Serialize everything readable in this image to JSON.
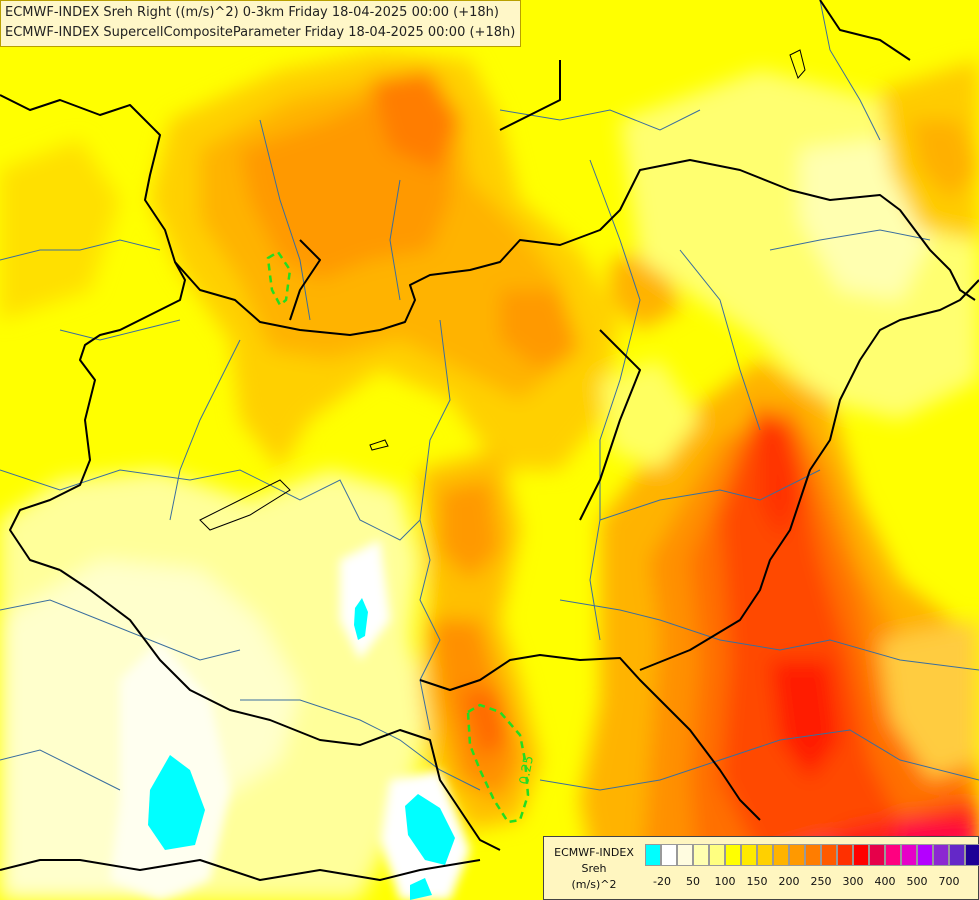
{
  "titles": {
    "line1": "ECMWF-INDEX Sreh Right ((m/s)^2) 0-3km Friday 18-04-2025 00:00 (+18h)",
    "line2": "ECMWF-INDEX SupercellCompositeParameter Friday 18-04-2025 00:00 (+18h)"
  },
  "contour_label": "0.25",
  "legend": {
    "line1": "ECMWF-INDEX",
    "line2": "Sreh",
    "line3": "(m/s)^2",
    "colors": [
      "#00ffff",
      "#ffffff",
      "#fffce0",
      "#ffffb0",
      "#ffff80",
      "#ffff00",
      "#ffea00",
      "#ffd000",
      "#ffb300",
      "#ff9900",
      "#ff7d00",
      "#ff5a00",
      "#ff3000",
      "#ff0000",
      "#e6004a",
      "#ff0080",
      "#e600c8",
      "#b400ff",
      "#8c28d2",
      "#6428c8",
      "#1e0096"
    ],
    "ticks": [
      "-20",
      "50",
      "100",
      "150",
      "200",
      "250",
      "300",
      "400",
      "500",
      "700"
    ]
  },
  "colors": {
    "border": "#000000",
    "rivers": "#3a6e9e",
    "contour": "#22dd22"
  }
}
